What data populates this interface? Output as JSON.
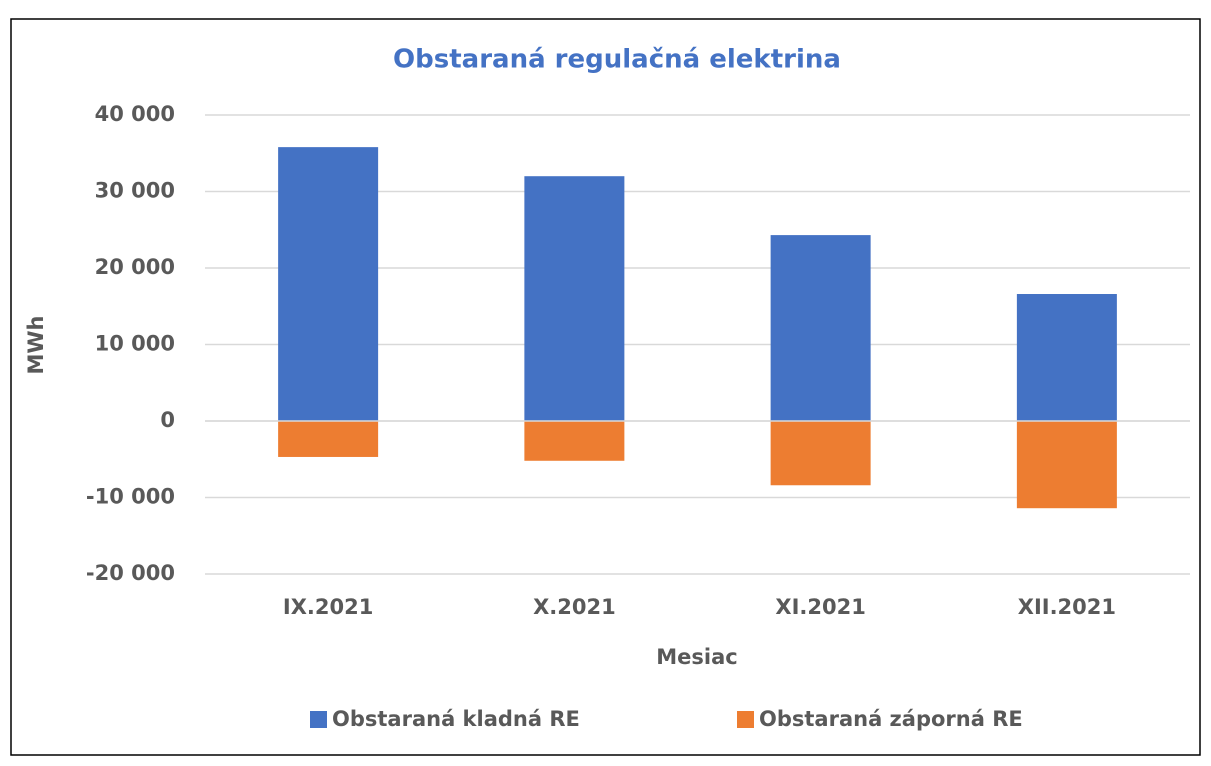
{
  "chart_data": {
    "type": "bar",
    "stacked": true,
    "title": "Obstaraná regulačná elektrina",
    "x_label": "Mesiac",
    "y_label": "MWh",
    "categories": [
      "IX.2021",
      "X.2021",
      "XI.2021",
      "XII.2021"
    ],
    "series": [
      {
        "name": "Obstaraná kladná RE",
        "color": "#4472c4",
        "values": [
          35800,
          32000,
          24300,
          16600
        ]
      },
      {
        "name": "Obstaraná záporná RE",
        "color": "#ed7d31",
        "values": [
          -4700,
          -5200,
          -8400,
          -11400
        ]
      }
    ],
    "ylim": [
      -20000,
      40000
    ],
    "yticks": [
      {
        "value": -20000,
        "label": "-20 000"
      },
      {
        "value": -10000,
        "label": "-10 000"
      },
      0,
      {
        "value": 10000,
        "label": "10 000"
      },
      {
        "value": 20000,
        "label": "20 000"
      },
      {
        "value": 30000,
        "label": "30 000"
      },
      {
        "value": 40000,
        "label": "40 000"
      }
    ],
    "grid": true,
    "legend": "bottom"
  }
}
